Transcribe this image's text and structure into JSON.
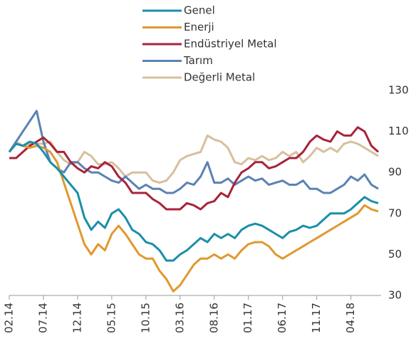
{
  "chart_data": {
    "type": "line",
    "categories": [
      "02.14",
      null,
      null,
      null,
      null,
      "07.14",
      null,
      null,
      null,
      null,
      "12.14",
      null,
      null,
      null,
      null,
      "05.15",
      null,
      null,
      null,
      null,
      "10.15",
      null,
      null,
      null,
      null,
      "03.16",
      null,
      null,
      null,
      null,
      "08.16",
      null,
      null,
      null,
      null,
      "01.17",
      null,
      null,
      null,
      null,
      "06.17",
      null,
      null,
      null,
      null,
      "11.17",
      null,
      null,
      null,
      null,
      "04.18",
      null,
      null,
      null,
      null
    ],
    "series": [
      {
        "name": "Genel",
        "color": "#1a8fa8",
        "values": [
          100,
          104,
          103,
          105,
          104,
          100,
          95,
          92,
          88,
          84,
          80,
          68,
          62,
          66,
          63,
          70,
          72,
          68,
          62,
          60,
          56,
          55,
          52,
          47,
          47,
          50,
          52,
          55,
          58,
          56,
          60,
          58,
          60,
          58,
          62,
          64,
          65,
          64,
          62,
          60,
          58,
          61,
          62,
          64,
          63,
          64,
          67,
          70,
          70,
          70,
          72,
          75,
          78,
          76,
          75
        ]
      },
      {
        "name": "Enerji",
        "color": "#e0982e",
        "values": [
          100,
          104,
          103,
          102,
          103,
          102,
          100,
          95,
          85,
          75,
          65,
          55,
          50,
          55,
          52,
          60,
          64,
          60,
          55,
          50,
          48,
          48,
          42,
          38,
          32,
          35,
          40,
          45,
          48,
          48,
          50,
          48,
          50,
          48,
          52,
          55,
          56,
          56,
          54,
          50,
          48,
          50,
          52,
          54,
          56,
          58,
          60,
          62,
          64,
          66,
          68,
          70,
          74,
          72,
          71
        ]
      },
      {
        "name": "Endüstriyel Metal",
        "color": "#a8233a",
        "values": [
          97,
          97,
          100,
          103,
          105,
          107,
          104,
          100,
          100,
          95,
          92,
          90,
          93,
          92,
          95,
          93,
          88,
          85,
          80,
          80,
          80,
          77,
          75,
          72,
          72,
          72,
          75,
          74,
          72,
          75,
          76,
          80,
          78,
          85,
          90,
          92,
          95,
          95,
          92,
          93,
          95,
          97,
          97,
          100,
          105,
          108,
          106,
          105,
          110,
          108,
          108,
          112,
          110,
          103,
          100
        ]
      },
      {
        "name": "Tarım",
        "color": "#5b82b4",
        "values": [
          100,
          105,
          110,
          115,
          120,
          105,
          95,
          92,
          90,
          95,
          95,
          92,
          90,
          90,
          88,
          86,
          85,
          88,
          85,
          82,
          84,
          82,
          82,
          80,
          80,
          82,
          85,
          84,
          88,
          95,
          85,
          85,
          87,
          84,
          86,
          88,
          86,
          87,
          84,
          85,
          86,
          84,
          84,
          86,
          82,
          82,
          80,
          80,
          82,
          84,
          88,
          86,
          89,
          84,
          82
        ]
      },
      {
        "name": "Değerli Metal",
        "color": "#d8bf9c",
        "values": [
          100,
          105,
          103,
          104,
          104,
          104,
          105,
          100,
          96,
          94,
          95,
          100,
          98,
          94,
          94,
          95,
          92,
          88,
          90,
          90,
          90,
          86,
          85,
          86,
          90,
          96,
          98,
          99,
          100,
          108,
          106,
          105,
          102,
          95,
          94,
          97,
          96,
          98,
          96,
          97,
          100,
          98,
          100,
          95,
          98,
          102,
          100,
          102,
          100,
          104,
          105,
          104,
          102,
          100,
          98
        ]
      }
    ],
    "ylim": [
      30,
      130
    ],
    "yticks": [
      30,
      50,
      70,
      90,
      110,
      130
    ],
    "y_axis_side": "right",
    "legend": "top"
  }
}
